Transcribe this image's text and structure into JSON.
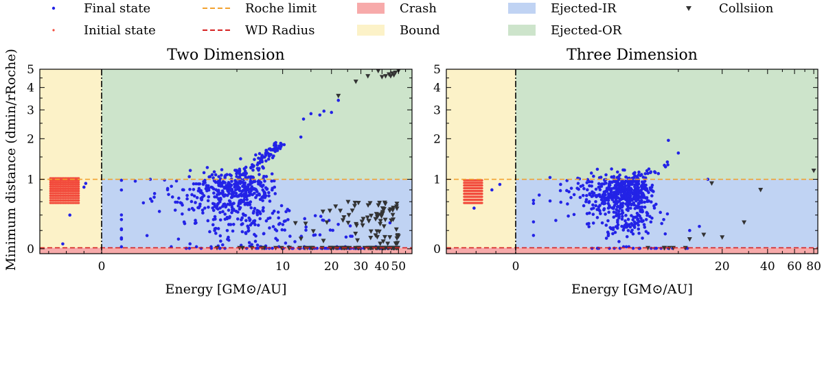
{
  "chart_data": {
    "type": "scatter",
    "legend": {
      "placement": "top",
      "entries": [
        {
          "label": "Final state",
          "kind": "dot",
          "color": "#2323e6"
        },
        {
          "label": "Initial state",
          "kind": "dot",
          "color": "#f24b3c"
        },
        {
          "label": "Roche limit",
          "kind": "dashed-line",
          "color": "#f2a12e"
        },
        {
          "label": "WD Radius",
          "kind": "dashed-line",
          "color": "#d62020"
        },
        {
          "label": "Crash",
          "kind": "patch",
          "color": "#f7aaaa"
        },
        {
          "label": "Bound",
          "kind": "patch",
          "color": "#fcf2c8"
        },
        {
          "label": "Ejected-IR",
          "kind": "patch",
          "color": "#c0d3f3"
        },
        {
          "label": "Ejected-OR",
          "kind": "patch",
          "color": "#cde4cb"
        },
        {
          "label": "Collsiion",
          "kind": "triangle",
          "color": "#333333"
        }
      ]
    },
    "xlabel": "Energy [GM⊙/AU]",
    "ylabel": "Minimum distance (dmin/rRoche)",
    "regions": {
      "crash_color": "#f7aaaa",
      "bound_color": "#fcf2c8",
      "ejected_ir_color": "#c0d3f3",
      "ejected_or_color": "#cde4cb",
      "roche_color": "#f2a12e",
      "wd_color": "#d62020",
      "final_color": "#2323e6",
      "initial_color": "#f24b3c",
      "collision_color": "#333333"
    },
    "panels": [
      {
        "title": "Two Dimension",
        "x_scale": "symlog",
        "y_scale": "symlog",
        "xlim": [
          -3.5,
          60
        ],
        "ylim": [
          -0.05,
          5
        ],
        "roche_limit": 1.0,
        "wd_radius": 0.01,
        "xticks": [
          0,
          10,
          20,
          30,
          40,
          50
        ],
        "xtick_labels": [
          "0",
          "10",
          "20",
          "30",
          "40",
          "50"
        ],
        "yticks": [
          0,
          1,
          2,
          3,
          4,
          5
        ],
        "ytick_labels": [
          "0",
          "1",
          "2",
          "3",
          "4",
          "5"
        ],
        "initial_x": [
          -2.9,
          -1.3
        ],
        "initial_rows": [
          0.58,
          0.62,
          0.66,
          0.7,
          0.74,
          0.78,
          0.82,
          0.86,
          0.9,
          0.94,
          0.98,
          1.02
        ],
        "final_clusters": [
          {
            "cx": 4.0,
            "cy": 0.75,
            "sx": 1.5,
            "sy": 0.2,
            "n": 260
          },
          {
            "cx": 6.0,
            "cy": 0.8,
            "sx": 1.6,
            "sy": 0.2,
            "n": 140
          },
          {
            "cx": 6.5,
            "cy": 0.25,
            "sx": 3.0,
            "sy": 0.15,
            "n": 110
          },
          {
            "cx": 13.0,
            "cy": 0.2,
            "sx": 10.0,
            "sy": 0.12,
            "n": 35
          }
        ],
        "final_arc": {
          "x_from": 5.0,
          "x_to": 9.5,
          "y_from": 1.05,
          "y_to": 1.85,
          "n": 80
        },
        "final_outliers": [
          [
            13,
            2.05
          ],
          [
            13.5,
            2.65
          ],
          [
            15,
            2.85
          ],
          [
            18,
            2.95
          ],
          [
            22,
            3.4
          ],
          [
            20,
            2.9
          ],
          [
            17,
            2.8
          ],
          [
            -1,
            0.85
          ],
          [
            -1.8,
            0.4
          ],
          [
            -2.2,
            0.05
          ],
          [
            -0.9,
            0.92
          ]
        ],
        "final_floor": {
          "x_from": 2.0,
          "x_to": 50,
          "y": 0.005,
          "n": 60
        },
        "collisions_floor": {
          "x_from": 3.0,
          "x_to": 50,
          "y": 0.008,
          "n": 70
        },
        "collisions_scatter": {
          "x_from": 10,
          "x_to": 50,
          "y_from": 0.05,
          "y_to": 0.6,
          "n": 80
        },
        "collisions_high": [
          [
            28,
            4.3
          ],
          [
            33,
            4.6
          ],
          [
            38,
            4.9
          ],
          [
            40,
            4.55
          ],
          [
            42,
            4.6
          ],
          [
            44,
            4.7
          ],
          [
            46,
            4.75
          ],
          [
            48,
            4.8
          ],
          [
            50,
            4.9
          ],
          [
            22,
            3.6
          ],
          [
            45,
            4.6
          ],
          [
            47,
            4.65
          ]
        ]
      },
      {
        "title": "Three Dimension",
        "x_scale": "symlog",
        "y_scale": "symlog",
        "xlim": [
          -3.5,
          85
        ],
        "ylim": [
          -0.05,
          5
        ],
        "roche_limit": 1.0,
        "wd_radius": 0.01,
        "xticks": [
          0,
          20,
          40,
          60,
          80
        ],
        "xtick_labels": [
          "0",
          "20",
          "40",
          "60",
          "80"
        ],
        "yticks": [
          0,
          1,
          2,
          3,
          4,
          5
        ],
        "ytick_labels": [
          "0",
          "1",
          "2",
          "3",
          "4",
          "5"
        ],
        "initial_x": [
          -2.6,
          -1.7
        ],
        "initial_rows": [
          0.58,
          0.63,
          0.68,
          0.73,
          0.78,
          0.83,
          0.88,
          0.93,
          0.98
        ],
        "final_clusters": [
          {
            "cx": 3.8,
            "cy": 0.75,
            "sx": 1.2,
            "sy": 0.17,
            "n": 520
          },
          {
            "cx": 4.0,
            "cy": 0.3,
            "sx": 1.5,
            "sy": 0.12,
            "n": 110
          }
        ],
        "final_arc": {
          "x_from": 5.0,
          "x_to": 9.0,
          "y_from": 1.0,
          "y_to": 1.4,
          "n": 12
        },
        "final_outliers": [
          [
            8.5,
            1.95
          ],
          [
            10,
            1.6
          ],
          [
            16,
            1.0
          ],
          [
            12,
            0.2
          ],
          [
            14,
            0.25
          ],
          [
            -1.2,
            0.8
          ],
          [
            -2.1,
            0.5
          ],
          [
            -0.8,
            0.9
          ]
        ],
        "final_floor": {
          "x_from": 2.0,
          "x_to": 12,
          "y": 0.005,
          "n": 20
        },
        "collisions_floor": {
          "x_from": 5.0,
          "x_to": 12,
          "y": 0.008,
          "n": 6
        },
        "collisions_scatter": {
          "x_from": 16,
          "x_to": 40,
          "y_from": 0.05,
          "y_to": 0.7,
          "n": 0
        },
        "collisions_high": [
          [
            17,
            0.92
          ],
          [
            36,
            0.8
          ],
          [
            28,
            0.3
          ],
          [
            20,
            0.12
          ],
          [
            80,
            1.18
          ],
          [
            12,
            0.1
          ],
          [
            15,
            0.15
          ]
        ]
      }
    ]
  }
}
